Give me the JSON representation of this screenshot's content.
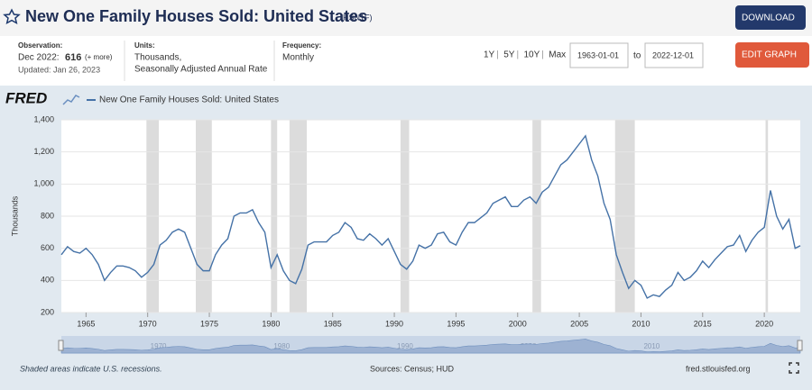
{
  "header": {
    "title": "New One Family Houses Sold: United States",
    "series_id": "(HSN1F)",
    "download": "DOWNLOAD",
    "observation_label": "Observation:",
    "observation_date": "Dec 2022:",
    "observation_value": 616,
    "more": "(+ more)",
    "updated": "Updated: Jan 26, 2023",
    "units_label": "Units:",
    "units_1": "Thousands,",
    "units_2": "Seasonally Adjusted Annual Rate",
    "frequency_label": "Frequency:",
    "frequency": "Monthly",
    "ranges": [
      "1Y",
      "5Y",
      "10Y",
      "Max"
    ],
    "start_date": "1963-01-01",
    "to": "to",
    "end_date": "2022-12-01",
    "edit_graph": "EDIT GRAPH"
  },
  "logo": "FRED",
  "footer": {
    "note": "Shaded areas indicate U.S. recessions.",
    "sources": "Sources: Census; HUD",
    "site": "fred.stlouisfed.org"
  },
  "chart_data": {
    "type": "line",
    "y_label": "Thousands",
    "series": [
      {
        "name": "New One Family Houses Sold: United States",
        "color": "#4572a7",
        "x": [
          1963,
          1963.5,
          1964,
          1964.5,
          1965,
          1965.5,
          1966,
          1966.5,
          1967,
          1967.5,
          1968,
          1968.5,
          1969,
          1969.5,
          1970,
          1970.5,
          1971,
          1971.5,
          1972,
          1972.5,
          1973,
          1973.5,
          1974,
          1974.5,
          1975,
          1975.5,
          1976,
          1976.5,
          1977,
          1977.5,
          1978,
          1978.5,
          1979,
          1979.5,
          1980,
          1980.5,
          1981,
          1981.5,
          1982,
          1982.5,
          1983,
          1983.5,
          1984,
          1984.5,
          1985,
          1985.5,
          1986,
          1986.5,
          1987,
          1987.5,
          1988,
          1988.5,
          1989,
          1989.5,
          1990,
          1990.5,
          1991,
          1991.5,
          1992,
          1992.5,
          1993,
          1993.5,
          1994,
          1994.5,
          1995,
          1995.5,
          1996,
          1996.5,
          1997,
          1997.5,
          1998,
          1998.5,
          1999,
          1999.5,
          2000,
          2000.5,
          2001,
          2001.5,
          2002,
          2002.5,
          2003,
          2003.5,
          2004,
          2004.5,
          2005,
          2005.5,
          2006,
          2006.5,
          2007,
          2007.5,
          2008,
          2008.5,
          2009,
          2009.5,
          2010,
          2010.5,
          2011,
          2011.5,
          2012,
          2012.5,
          2013,
          2013.5,
          2014,
          2014.5,
          2015,
          2015.5,
          2016,
          2016.5,
          2017,
          2017.5,
          2018,
          2018.5,
          2019,
          2019.5,
          2020,
          2020.5,
          2021,
          2021.5,
          2022,
          2022.5,
          2022.917
        ],
        "values": [
          560,
          610,
          580,
          570,
          600,
          560,
          500,
          400,
          450,
          490,
          490,
          480,
          460,
          420,
          450,
          500,
          620,
          650,
          700,
          720,
          700,
          600,
          500,
          460,
          460,
          560,
          620,
          660,
          800,
          820,
          820,
          840,
          760,
          700,
          480,
          560,
          460,
          400,
          380,
          470,
          620,
          640,
          640,
          640,
          680,
          700,
          760,
          730,
          660,
          650,
          690,
          660,
          620,
          660,
          580,
          500,
          470,
          520,
          620,
          600,
          620,
          690,
          700,
          640,
          620,
          700,
          760,
          760,
          790,
          820,
          880,
          900,
          920,
          860,
          860,
          900,
          920,
          880,
          950,
          980,
          1050,
          1120,
          1150,
          1200,
          1250,
          1300,
          1150,
          1050,
          880,
          780,
          560,
          450,
          350,
          400,
          370,
          290,
          310,
          300,
          340,
          370,
          450,
          400,
          420,
          460,
          520,
          480,
          530,
          570,
          610,
          620,
          680,
          580,
          650,
          700,
          730,
          960,
          800,
          720,
          780,
          600,
          616
        ]
      }
    ],
    "recessions": [
      [
        1969.9,
        1970.9
      ],
      [
        1973.9,
        1975.2
      ],
      [
        1980.0,
        1980.5
      ],
      [
        1981.5,
        1982.9
      ],
      [
        1990.5,
        1991.2
      ],
      [
        2001.2,
        2001.9
      ],
      [
        2007.9,
        2009.5
      ],
      [
        2020.1,
        2020.3
      ]
    ],
    "xlim": [
      1963,
      2022.917
    ],
    "xticks": [
      1965,
      1970,
      1975,
      1980,
      1985,
      1990,
      1995,
      2000,
      2005,
      2010,
      2015,
      2020
    ],
    "ylim": [
      200,
      1400
    ],
    "yticks": [
      200,
      400,
      600,
      800,
      {
        "value": 1000,
        "label": "1,000"
      },
      {
        "value": 1200,
        "label": "1,200"
      },
      {
        "value": 1400,
        "label": "1,400"
      }
    ],
    "navigator_ticks": [
      1970,
      1980,
      1990,
      2000,
      2010
    ],
    "grid": true
  }
}
